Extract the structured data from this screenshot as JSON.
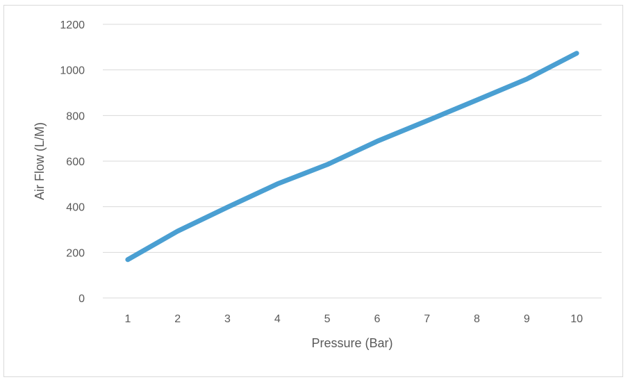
{
  "chart_data": {
    "type": "line",
    "title": "",
    "xlabel": "Pressure (Bar)",
    "ylabel": "Air Flow (L/M)",
    "categories": [
      "1",
      "2",
      "3",
      "4",
      "5",
      "6",
      "7",
      "8",
      "9",
      "10"
    ],
    "series": [
      {
        "values": [
          168,
          293,
          398,
          500,
          585,
          687,
          777,
          868,
          960,
          1073
        ],
        "color": "#4a9fd2"
      }
    ],
    "ylim": [
      0,
      1200
    ],
    "yticks": [
      0,
      200,
      400,
      600,
      800,
      1000,
      1200
    ],
    "grid": "horizontal",
    "legend": "none"
  }
}
